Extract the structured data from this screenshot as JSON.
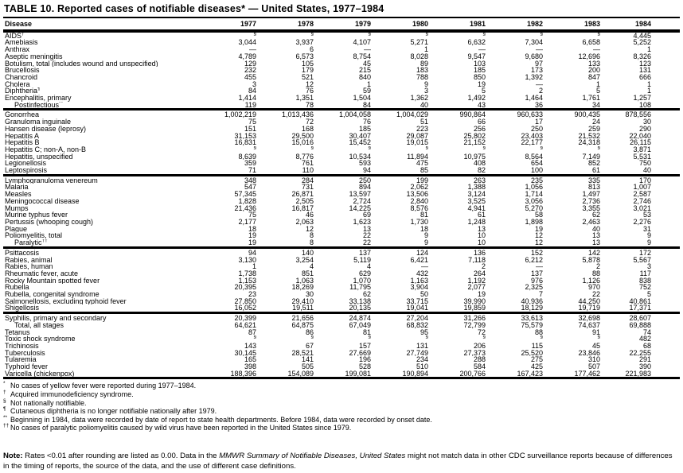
{
  "title": "TABLE 10. Reported cases of notifiable diseases* — United States, 1977–1984",
  "columns": [
    "Disease",
    "1977",
    "1978",
    "1979",
    "1980",
    "1981",
    "1982",
    "1983",
    "1984"
  ],
  "groups": [
    {
      "rows": [
        {
          "label": "AIDS",
          "sup": "†",
          "values": [
            "§",
            "§",
            "§",
            "§",
            "§",
            "§",
            "§",
            "4,445"
          ]
        },
        {
          "label": "Amebiasis",
          "values": [
            "3,044",
            "3,937",
            "4,107",
            "5,271",
            "6,632",
            "7,304",
            "6,658",
            "5,252"
          ]
        },
        {
          "label": "Anthrax",
          "values": [
            "—",
            "6",
            "—",
            "1",
            "—",
            "—",
            "—",
            "1"
          ]
        },
        {
          "label": "Aseptic meningitis",
          "values": [
            "4,789",
            "6,573",
            "8,754",
            "8,028",
            "9,547",
            "9,680",
            "12,696",
            "8,326"
          ]
        },
        {
          "label": "Botulism, total (includes wound and unspecified)",
          "values": [
            "129",
            "105",
            "45",
            "89",
            "103",
            "97",
            "133",
            "123"
          ]
        },
        {
          "label": "Brucellosis",
          "values": [
            "232",
            "179",
            "215",
            "183",
            "185",
            "173",
            "200",
            "131"
          ]
        },
        {
          "label": "Chancroid",
          "values": [
            "455",
            "521",
            "840",
            "788",
            "850",
            "1,392",
            "847",
            "666"
          ]
        },
        {
          "label": "Cholera",
          "values": [
            "3",
            "12",
            "1",
            "9",
            "19",
            "—",
            "1",
            "1"
          ]
        },
        {
          "label": "Diphtheria",
          "sup": "¶",
          "values": [
            "84",
            "76",
            "59",
            "3",
            "5",
            "2",
            "5",
            "1"
          ]
        },
        {
          "label": "Encephalitis, primary",
          "values": [
            "1,414",
            "1,351",
            "1,504",
            "1,362",
            "1,492",
            "1,464",
            "1,761",
            "1,257"
          ]
        },
        {
          "label": "Postinfectious",
          "sup": "**",
          "indent": true,
          "values": [
            "119",
            "78",
            "84",
            "40",
            "43",
            "36",
            "34",
            "108"
          ]
        }
      ]
    },
    {
      "rows": [
        {
          "label": "Gonorrhea",
          "values": [
            "1,002,219",
            "1,013,436",
            "1,004,058",
            "1,004,029",
            "990,864",
            "960,633",
            "900,435",
            "878,556"
          ]
        },
        {
          "label": "Granuloma inguinale",
          "values": [
            "75",
            "72",
            "76",
            "51",
            "66",
            "17",
            "24",
            "30"
          ]
        },
        {
          "label": "Hansen disease (leprosy)",
          "values": [
            "151",
            "168",
            "185",
            "223",
            "256",
            "250",
            "259",
            "290"
          ]
        },
        {
          "label": "Hepatitis A",
          "values": [
            "31,153",
            "29,500",
            "30,407",
            "29,087",
            "25,802",
            "23,403",
            "21,532",
            "22,040"
          ]
        },
        {
          "label": "Hepatitis B",
          "values": [
            "16,831",
            "15,016",
            "15,452",
            "19,015",
            "21,152",
            "22,177",
            "24,318",
            "26,115"
          ]
        },
        {
          "label": "Hepatitis C; non-A, non-B",
          "values": [
            "§",
            "§",
            "§",
            "§",
            "§",
            "§",
            "§",
            "3,871"
          ]
        },
        {
          "label": "Hepatitis, unspecified",
          "values": [
            "8,639",
            "8,776",
            "10,534",
            "11,894",
            "10,975",
            "8,564",
            "7,149",
            "5,531"
          ]
        },
        {
          "label": "Legionellosis",
          "values": [
            "359",
            "761",
            "593",
            "475",
            "408",
            "654",
            "852",
            "750"
          ]
        },
        {
          "label": "Leptospirosis",
          "values": [
            "71",
            "110",
            "94",
            "85",
            "82",
            "100",
            "61",
            "40"
          ]
        }
      ]
    },
    {
      "rows": [
        {
          "label": "Lymphogranuloma venereum",
          "values": [
            "348",
            "284",
            "250",
            "199",
            "263",
            "235",
            "335",
            "170"
          ]
        },
        {
          "label": "Malaria",
          "values": [
            "547",
            "731",
            "894",
            "2,062",
            "1,388",
            "1,056",
            "813",
            "1,007"
          ]
        },
        {
          "label": "Measles",
          "values": [
            "57,345",
            "26,871",
            "13,597",
            "13,506",
            "3,124",
            "1,714",
            "1,497",
            "2,587"
          ]
        },
        {
          "label": "Meningococcal disease",
          "values": [
            "1,828",
            "2,505",
            "2,724",
            "2,840",
            "3,525",
            "3,056",
            "2,736",
            "2,746"
          ]
        },
        {
          "label": "Mumps",
          "values": [
            "21,436",
            "16,817",
            "14,225",
            "8,576",
            "4,941",
            "5,270",
            "3,355",
            "3,021"
          ]
        },
        {
          "label": "Murine typhus fever",
          "values": [
            "75",
            "46",
            "69",
            "81",
            "61",
            "58",
            "62",
            "53"
          ]
        },
        {
          "label": "Pertussis (whooping cough)",
          "values": [
            "2,177",
            "2,063",
            "1,623",
            "1,730",
            "1,248",
            "1,898",
            "2,463",
            "2,276"
          ]
        },
        {
          "label": "Plague",
          "values": [
            "18",
            "12",
            "13",
            "18",
            "13",
            "19",
            "40",
            "31"
          ]
        },
        {
          "label": "Poliomyelitis, total",
          "values": [
            "19",
            "8",
            "22",
            "9",
            "10",
            "12",
            "13",
            "9"
          ]
        },
        {
          "label": "Paralytic",
          "sup": "††",
          "indent": true,
          "values": [
            "19",
            "8",
            "22",
            "9",
            "10",
            "12",
            "13",
            "9"
          ]
        }
      ]
    },
    {
      "rows": [
        {
          "label": "Psittacosis",
          "values": [
            "94",
            "140",
            "137",
            "124",
            "136",
            "152",
            "142",
            "172"
          ]
        },
        {
          "label": "Rabies, animal",
          "values": [
            "3,130",
            "3,254",
            "5,119",
            "6,421",
            "7,118",
            "6,212",
            "5,878",
            "5,567"
          ]
        },
        {
          "label": "Rabies, human",
          "values": [
            "1",
            "4",
            "4",
            "—",
            "2",
            "—",
            "2",
            "3"
          ]
        },
        {
          "label": "Rheumatic fever, acute",
          "values": [
            "1,738",
            "851",
            "629",
            "432",
            "264",
            "137",
            "88",
            "117"
          ]
        },
        {
          "label": "Rocky Mountain spotted fever",
          "values": [
            "1,153",
            "1,063",
            "1,070",
            "1,163",
            "1,192",
            "976",
            "1,126",
            "838"
          ]
        },
        {
          "label": "Rubella",
          "values": [
            "20,395",
            "18,269",
            "11,795",
            "3,904",
            "2,077",
            "2,325",
            "970",
            "752"
          ]
        },
        {
          "label": "Rubella, congenital syndrome",
          "values": [
            "23",
            "30",
            "62",
            "50",
            "19",
            "7",
            "22",
            "5"
          ]
        },
        {
          "label": "Salmonellosis, excluding typhoid fever",
          "values": [
            "27,850",
            "29,410",
            "33,138",
            "33,715",
            "39,990",
            "40,936",
            "44,250",
            "40,861"
          ]
        },
        {
          "label": "Shigellosis",
          "values": [
            "16,052",
            "19,511",
            "20,135",
            "19,041",
            "19,859",
            "18,129",
            "19,719",
            "17,371"
          ]
        }
      ]
    },
    {
      "rows": [
        {
          "label": "Syphilis, primary and secondary",
          "values": [
            "20,399",
            "21,656",
            "24,874",
            "27,204",
            "31,266",
            "33,613",
            "32,698",
            "28,607"
          ]
        },
        {
          "label": "Total, all stages",
          "indent": true,
          "values": [
            "64,621",
            "64,875",
            "67,049",
            "68,832",
            "72,799",
            "75,579",
            "74,637",
            "69,888"
          ]
        },
        {
          "label": "Tetanus",
          "values": [
            "87",
            "86",
            "81",
            "95",
            "72",
            "88",
            "91",
            "74"
          ]
        },
        {
          "label": "Toxic shock syndrome",
          "values": [
            "§",
            "§",
            "§",
            "§",
            "§",
            "§",
            "§",
            "482"
          ]
        },
        {
          "label": "Trichinosis",
          "values": [
            "143",
            "67",
            "157",
            "131",
            "206",
            "115",
            "45",
            "68"
          ]
        },
        {
          "label": "Tuberculosis",
          "values": [
            "30,145",
            "28,521",
            "27,669",
            "27,749",
            "27,373",
            "25,520",
            "23,846",
            "22,255"
          ]
        },
        {
          "label": "Tularemia",
          "values": [
            "165",
            "141",
            "196",
            "234",
            "288",
            "275",
            "310",
            "291"
          ]
        },
        {
          "label": "Typhoid fever",
          "values": [
            "398",
            "505",
            "528",
            "510",
            "584",
            "425",
            "507",
            "390"
          ]
        },
        {
          "label": "Varicella (chickenpox)",
          "values": [
            "188,396",
            "154,089",
            "199,081",
            "190,894",
            "200,766",
            "167,423",
            "177,462",
            "221,983"
          ]
        }
      ]
    }
  ],
  "footnotes": [
    {
      "marker": "*",
      "text": "No cases of yellow fever were reported during 1977–1984."
    },
    {
      "marker": "†",
      "text": "Acquired immunodeficiency syndrome."
    },
    {
      "marker": "§",
      "text": "Not nationally notifiable."
    },
    {
      "marker": "¶",
      "text": "Cutaneous diphtheria is no longer notifiable nationally after 1979."
    },
    {
      "marker": "**",
      "text": "Beginning in 1984, data were recorded by date of report to state health departments.  Before 1984, data were recorded by onset date."
    },
    {
      "marker": "††",
      "text": "No cases of paralytic poliomyelitis caused by wild virus have been reported in the United States since 1979."
    }
  ],
  "note": {
    "label": "Note:",
    "before": " Rates <0.01 after rounding are listed as 0.00. Data in the ",
    "italic": "MMWR Summary of Notifiable Diseases, United States",
    "after": " might not match data in other CDC surveillance reports because of differences in the timing of reports, the source of the data, and the use of different case definitions."
  }
}
